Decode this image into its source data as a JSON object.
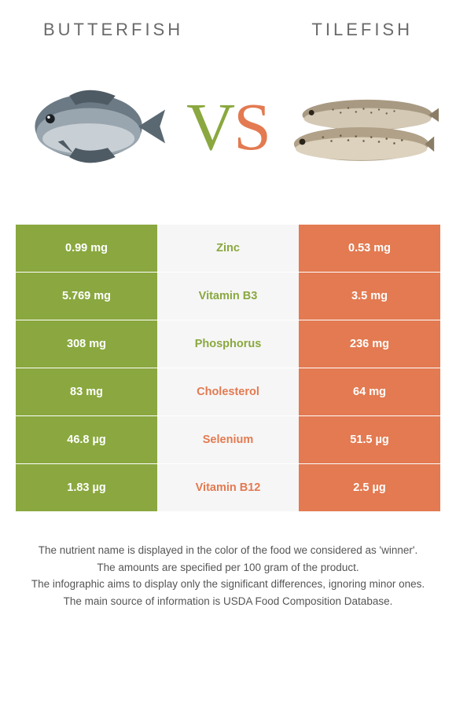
{
  "header": {
    "left_title": "Butterfish",
    "right_title": "Tilefish"
  },
  "vs": {
    "v": "V",
    "s": "S"
  },
  "colors": {
    "left": "#8aa83f",
    "right": "#e37a51",
    "mid_bg": "#f6f6f6",
    "text": "#333333"
  },
  "table": {
    "type": "comparison-table",
    "rows": [
      {
        "left": "0.99 mg",
        "label": "Zinc",
        "right": "0.53 mg",
        "winner": "left"
      },
      {
        "left": "5.769 mg",
        "label": "Vitamin B3",
        "right": "3.5 mg",
        "winner": "left"
      },
      {
        "left": "308 mg",
        "label": "Phosphorus",
        "right": "236 mg",
        "winner": "left"
      },
      {
        "left": "83 mg",
        "label": "Cholesterol",
        "right": "64 mg",
        "winner": "right"
      },
      {
        "left": "46.8 µg",
        "label": "Selenium",
        "right": "51.5 µg",
        "winner": "right"
      },
      {
        "left": "1.83 µg",
        "label": "Vitamin B12",
        "right": "2.5 µg",
        "winner": "right"
      }
    ]
  },
  "footnotes": [
    "The nutrient name is displayed in the color of the food we considered as 'winner'.",
    "The amounts are specified per 100 gram of the product.",
    "The infographic aims to display only the significant differences, ignoring minor ones.",
    "The main source of information is USDA Food Composition Database."
  ]
}
